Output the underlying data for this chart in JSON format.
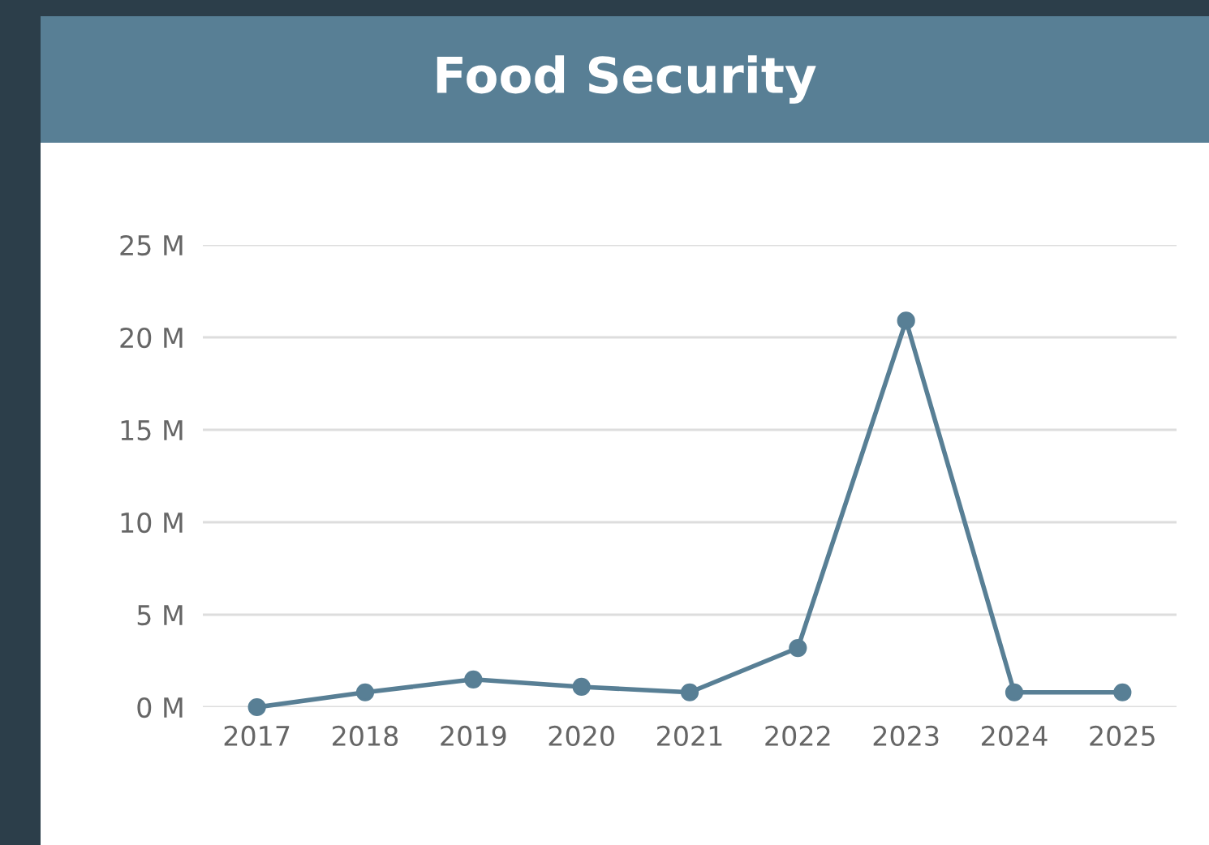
{
  "chart_data": {
    "type": "line",
    "title": "Food Security",
    "categories": [
      "2017",
      "2018",
      "2019",
      "2020",
      "2021",
      "2022",
      "2023",
      "2024",
      "2025"
    ],
    "series": [
      {
        "color": "#587f95",
        "values": [
          0,
          0.8,
          1.5,
          1.1,
          0.8,
          3.2,
          20.9,
          0.8,
          0.8
        ]
      }
    ],
    "ylim": [
      0,
      25
    ],
    "yticks": [
      {
        "value": 0,
        "label": "0 M"
      },
      {
        "value": 5,
        "label": "5 M"
      },
      {
        "value": 10,
        "label": "10 M"
      },
      {
        "value": 15,
        "label": "15 M"
      },
      {
        "value": 20,
        "label": "20 M"
      },
      {
        "value": 25,
        "label": "25 M"
      }
    ],
    "grid": "y",
    "marker": "circle",
    "line_style": "solid",
    "legend": false
  }
}
